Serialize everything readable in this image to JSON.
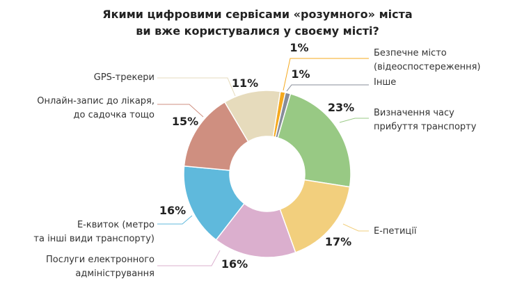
{
  "chart_data": {
    "type": "pie",
    "variant": "donut",
    "title": [
      "Якими цифровими сервісами «розумного» міста",
      "ви вже користувалися у своєму місті?"
    ],
    "slices": [
      {
        "label": [
          "Безпечне місто",
          "(відеоспостереження)"
        ],
        "value": 1,
        "display": "1%",
        "color": "#f5a91e"
      },
      {
        "label": [
          "Інше"
        ],
        "value": 1,
        "display": "1%",
        "color": "#878c99"
      },
      {
        "label": [
          "Визначення часу",
          "прибуття транспорту"
        ],
        "value": 23,
        "display": "23%",
        "color": "#98c984"
      },
      {
        "label": [
          "Е-петиції"
        ],
        "value": 17,
        "display": "17%",
        "color": "#f2cf7d"
      },
      {
        "label": [
          "Послуги електронного",
          "адміністрування"
        ],
        "value": 16,
        "display": "16%",
        "color": "#dbafce"
      },
      {
        "label": [
          "Е-квиток (метро",
          "та інші види транспорту)"
        ],
        "value": 16,
        "display": "16%",
        "color": "#5fb9dc"
      },
      {
        "label": [
          "Онлайн-запис до лікаря,",
          "до садочка тощо"
        ],
        "value": 15,
        "display": "15%",
        "color": "#cf8f80"
      },
      {
        "label": [
          "GPS-трекери"
        ],
        "value": 11,
        "display": "11%",
        "color": "#e6dbbc"
      }
    ]
  }
}
